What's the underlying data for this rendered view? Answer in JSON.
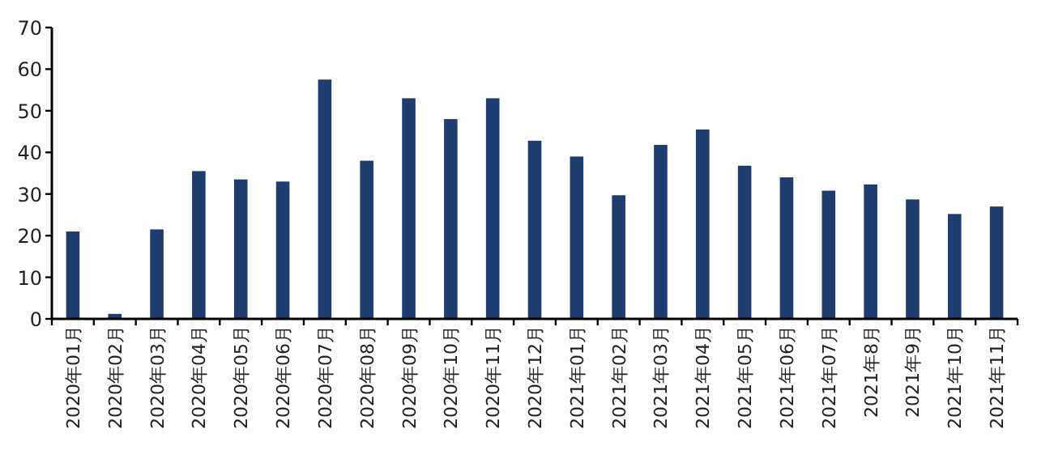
{
  "chart_data": {
    "type": "bar",
    "categories": [
      "2020年01月",
      "2020年02月",
      "2020年03月",
      "2020年04月",
      "2020年05月",
      "2020年06月",
      "2020年07月",
      "2020年08月",
      "2020年09月",
      "2020年10月",
      "2020年11月",
      "2020年12月",
      "2021年01月",
      "2021年02月",
      "2021年03月",
      "2021年04月",
      "2021年05月",
      "2021年06月",
      "2021年07月",
      "2021年8月",
      "2021年9月",
      "2021年10月",
      "2021年11月"
    ],
    "values": [
      21,
      1.2,
      21.5,
      35.5,
      33.5,
      33,
      57.5,
      38,
      53,
      48,
      53,
      42.8,
      39,
      29.7,
      41.8,
      45.5,
      36.8,
      34,
      30.8,
      32.3,
      28.7,
      25.2,
      27
    ],
    "color": "#1f3c6e",
    "ylim": [
      0,
      70
    ],
    "yticks": [
      0,
      10,
      20,
      30,
      40,
      50,
      60,
      70
    ]
  }
}
